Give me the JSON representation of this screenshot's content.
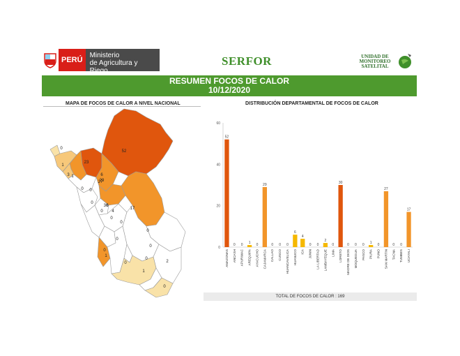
{
  "header": {
    "peru_label": "PERÚ",
    "ministerio_line1": "Ministerio",
    "ministerio_line2": "de Agricultura y Riego",
    "serfor": "SERFOR",
    "unidad_line1": "UNIDAD DE",
    "unidad_line2": "MONITOREO",
    "unidad_line3": "SATELITAL"
  },
  "banner": {
    "title": "RESUMEN FOCOS DE CALOR",
    "date": "10/12/2020"
  },
  "map": {
    "title": "MAPA DE FOCOS DE CALOR A NIVEL NACIONAL",
    "colors": {
      "high": "#e0560d",
      "mid": "#f2952a",
      "low": "#f7c87a",
      "vlow": "#f9e2a8",
      "zero": "#ffffff"
    },
    "region_values": [
      "0",
      "1",
      "3",
      "23",
      "52",
      "6",
      "29",
      "0",
      "27",
      "30",
      "6",
      "0",
      "4",
      "17",
      "1",
      "0",
      "0",
      "0",
      "0",
      "0",
      "0",
      "0",
      "0",
      "0",
      "0",
      "1",
      "1",
      "2",
      "0"
    ]
  },
  "chart_data": {
    "type": "bar",
    "title": "DISTRIBUCIÓN DEPARTAMENTAL DE FOCOS DE CALOR",
    "categories": [
      "AMAZONAS",
      "ANCASH",
      "APURIMAC",
      "AREQUIPA",
      "AYACUCHO",
      "CAJAMARCA",
      "CALLAO",
      "CUSCO",
      "HUANCAVELICA",
      "HUANUCO",
      "ICA",
      "JUNIN",
      "LA LIBERTAD",
      "LAMBAYEQUE",
      "LIMA",
      "LORETO",
      "MADRE DE DIOS",
      "MOQUEGUA",
      "PASCO",
      "PIURA",
      "PUNO",
      "SAN MARTIN",
      "TACNA",
      "TUMBES",
      "UCAYALI"
    ],
    "values": [
      52,
      0,
      0,
      1,
      0,
      29,
      0,
      0,
      0,
      6,
      4,
      0,
      0,
      2,
      0,
      30,
      0,
      0,
      0,
      1,
      0,
      27,
      0,
      0,
      17
    ],
    "value_labels": [
      "52",
      "0",
      "0",
      "1",
      "0",
      "29",
      "0",
      "0",
      "0",
      "6",
      "4",
      "0",
      "0",
      "2",
      "0",
      "30",
      "0",
      "0",
      "0",
      "1",
      "0",
      "27",
      "0",
      "0",
      "17"
    ],
    "colors": [
      "#e0560d",
      "#f2952a",
      "#f2952a",
      "#f5b800",
      "#f2952a",
      "#f2952a",
      "#f2952a",
      "#f2952a",
      "#f2952a",
      "#f5b800",
      "#f5b800",
      "#f2952a",
      "#f2952a",
      "#f5b800",
      "#f2952a",
      "#e0560d",
      "#f2952a",
      "#f2952a",
      "#f2952a",
      "#f5b800",
      "#f2952a",
      "#f2952a",
      "#f2952a",
      "#f2952a",
      "#f2952a"
    ],
    "y_ticks": [
      "0",
      "20",
      "40",
      "60"
    ],
    "ylim": [
      0,
      60
    ],
    "grid": false,
    "total_label": "TOTAL DE FOCOS DE CALOR : 169"
  }
}
